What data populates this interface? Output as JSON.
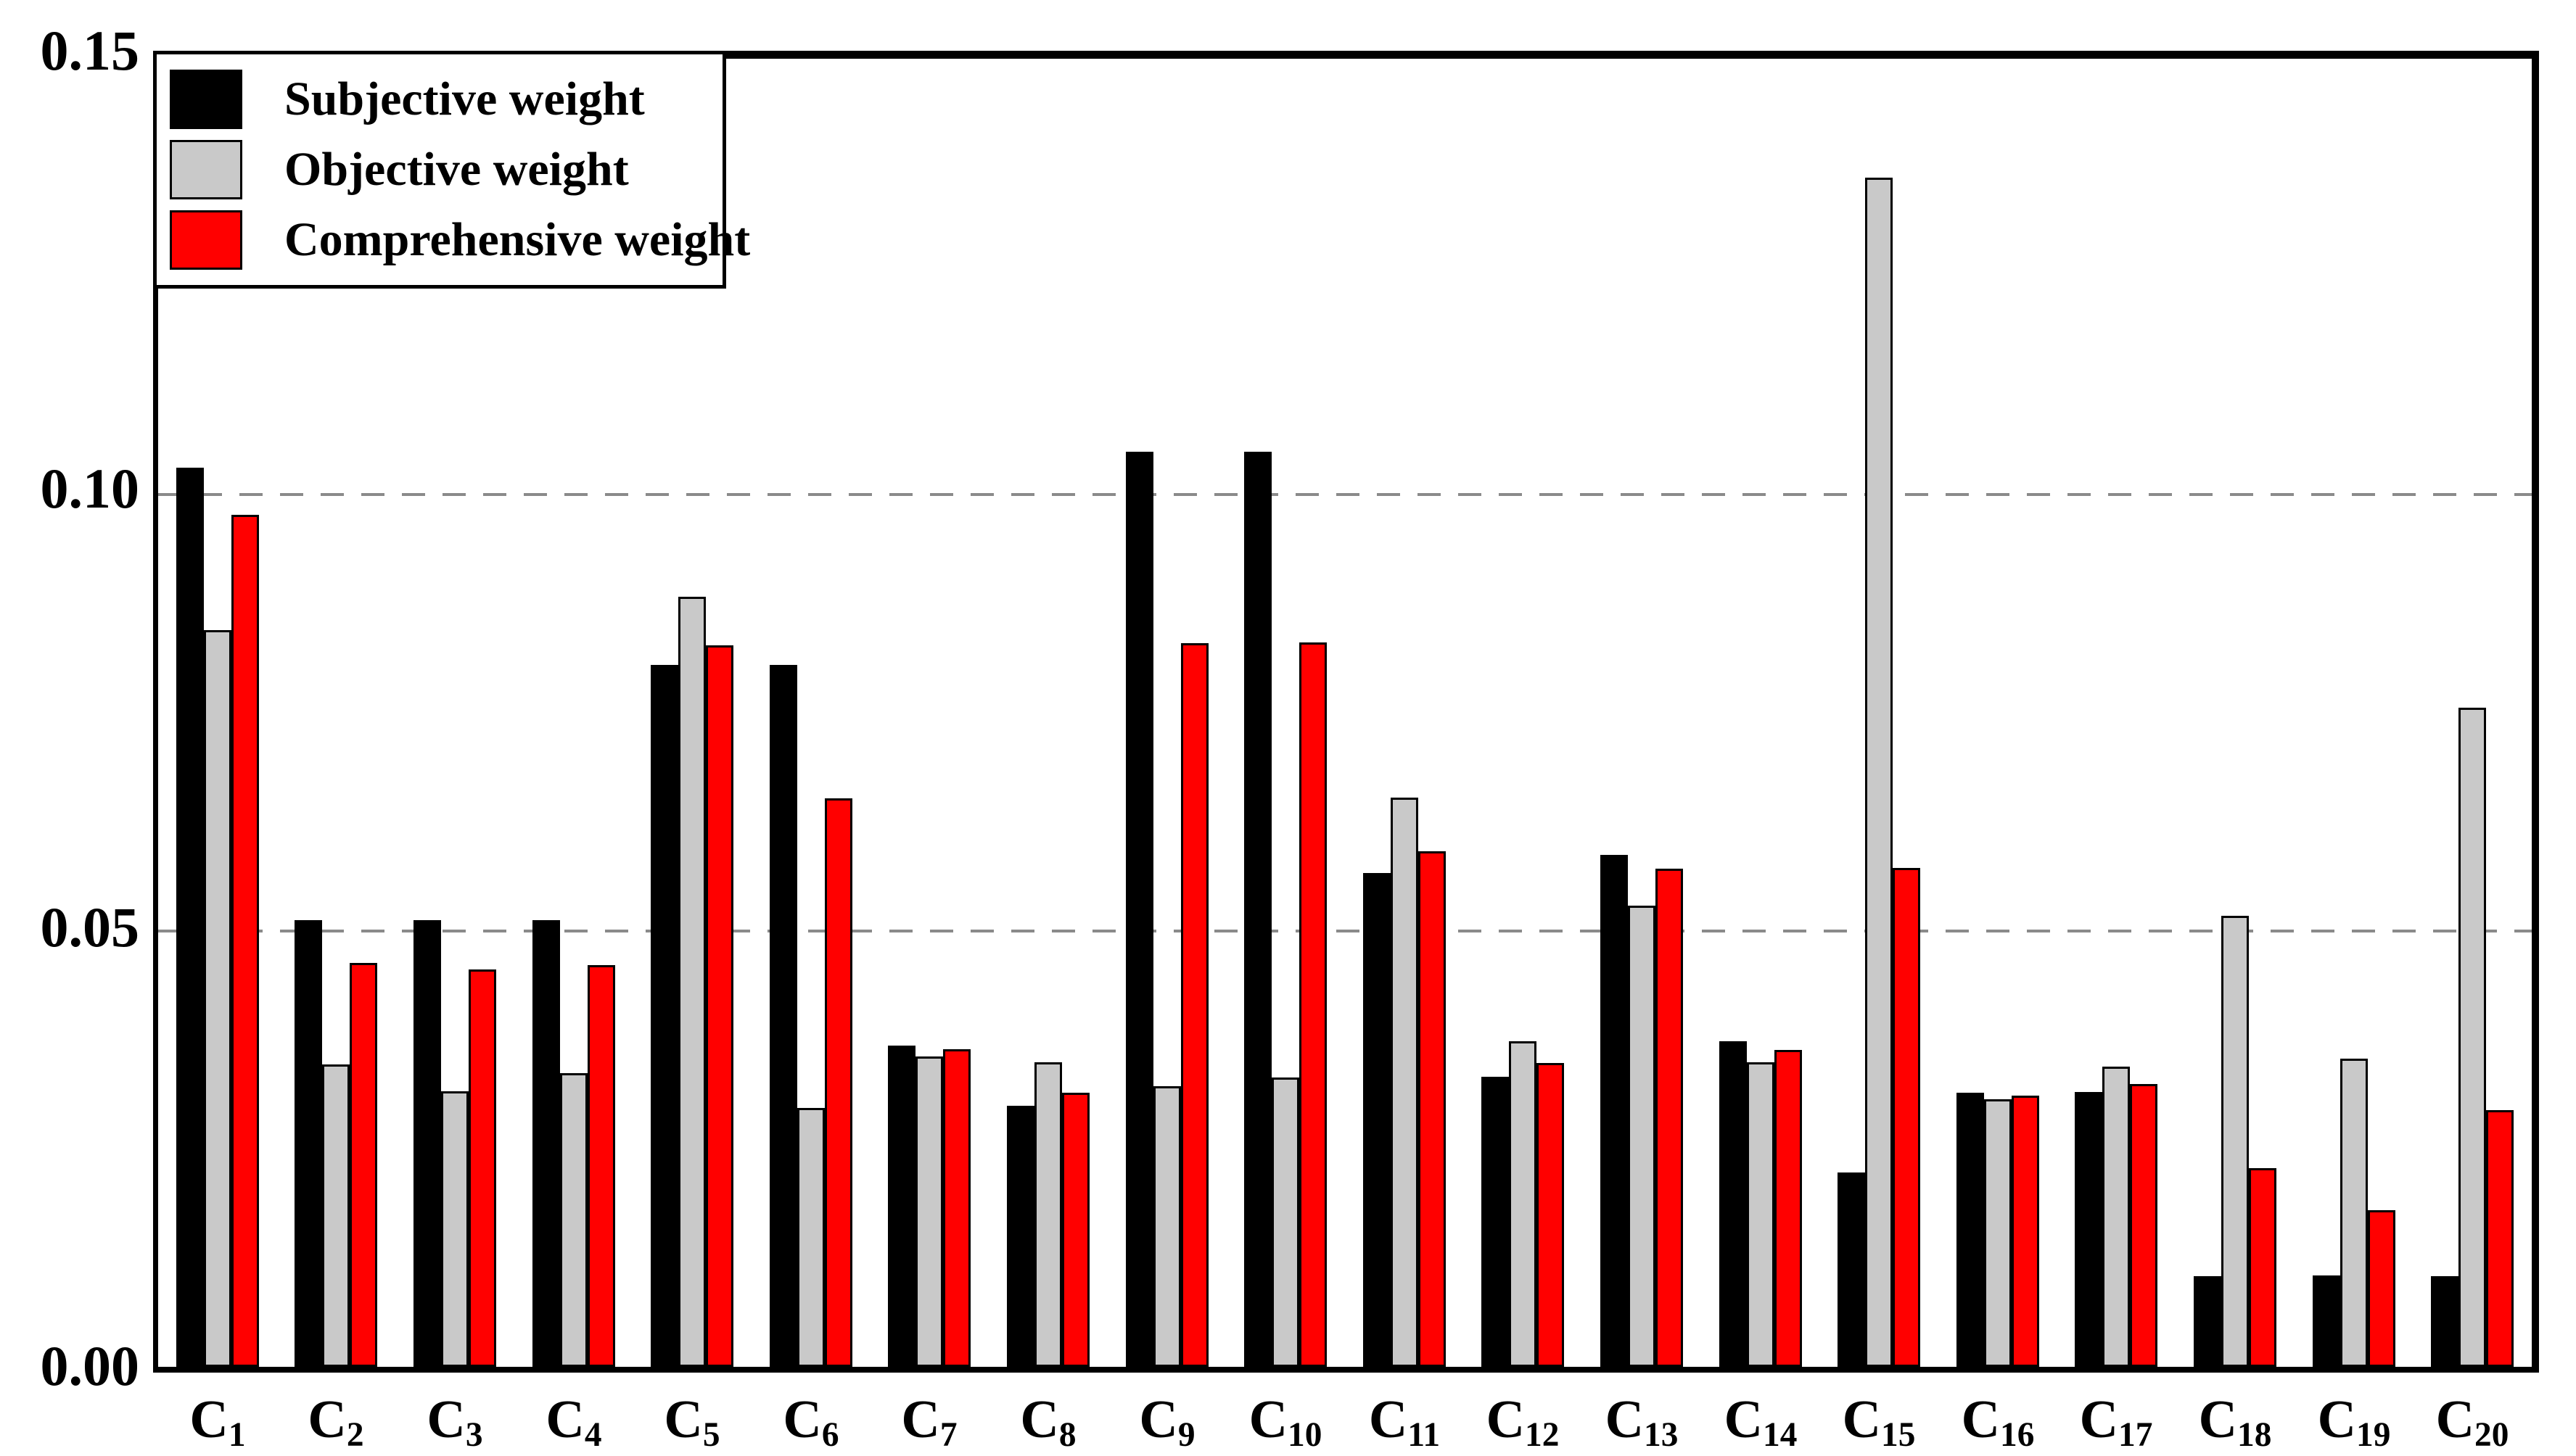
{
  "figure": {
    "background_color": "#ffffff",
    "frame_color": "#000000",
    "gridline_color": "#8a8a8a"
  },
  "legend": {
    "items": [
      {
        "label": "Subjective weight",
        "color": "#000000"
      },
      {
        "label": "Objective weight",
        "color": "#c9c9c9"
      },
      {
        "label": "Comprehensive weight",
        "color": "#ff0000"
      }
    ]
  },
  "y_axis": {
    "tick_labels": [
      "0.15",
      "0.10",
      "0.05",
      "0.00"
    ],
    "tick_values": [
      0.15,
      0.1,
      0.05,
      0.0
    ],
    "min": 0.0,
    "max": 0.15,
    "gridline_values": [
      0.05,
      0.1
    ]
  },
  "chart_data": {
    "type": "bar",
    "title": "",
    "xlabel": "",
    "ylabel": "",
    "ylim": [
      0.0,
      0.15
    ],
    "grid": "dashed horizontal at 0.05 and 0.10",
    "legend_position": "upper-left inside plot",
    "categories": [
      "C1",
      "C2",
      "C3",
      "C4",
      "C5",
      "C6",
      "C7",
      "C8",
      "C9",
      "C10",
      "C11",
      "C12",
      "C13",
      "C14",
      "C15",
      "C16",
      "C17",
      "C18",
      "C19",
      "C20"
    ],
    "series": [
      {
        "name": "Subjective weight",
        "color": "#000000",
        "values": [
          0.1031,
          0.0512,
          0.0512,
          0.0512,
          0.0805,
          0.0805,
          0.0368,
          0.0299,
          0.1049,
          0.1049,
          0.0566,
          0.0333,
          0.0587,
          0.0373,
          0.0223,
          0.0314,
          0.0315,
          0.0104,
          0.0105,
          0.0104
        ]
      },
      {
        "name": "Objective weight",
        "color": "#c9c9c9",
        "values": [
          0.0845,
          0.0347,
          0.0316,
          0.0337,
          0.0883,
          0.0297,
          0.0356,
          0.0349,
          0.0322,
          0.0332,
          0.0653,
          0.0373,
          0.0529,
          0.0349,
          0.1364,
          0.0307,
          0.0344,
          0.0517,
          0.0353,
          0.0756
        ]
      },
      {
        "name": "Comprehensive weight",
        "color": "#ff0000",
        "values": [
          0.0977,
          0.0463,
          0.0456,
          0.0461,
          0.0827,
          0.0652,
          0.0364,
          0.0314,
          0.083,
          0.0831,
          0.0591,
          0.0348,
          0.0571,
          0.0363,
          0.0572,
          0.0311,
          0.0324,
          0.0228,
          0.018,
          0.0294
        ]
      }
    ]
  }
}
